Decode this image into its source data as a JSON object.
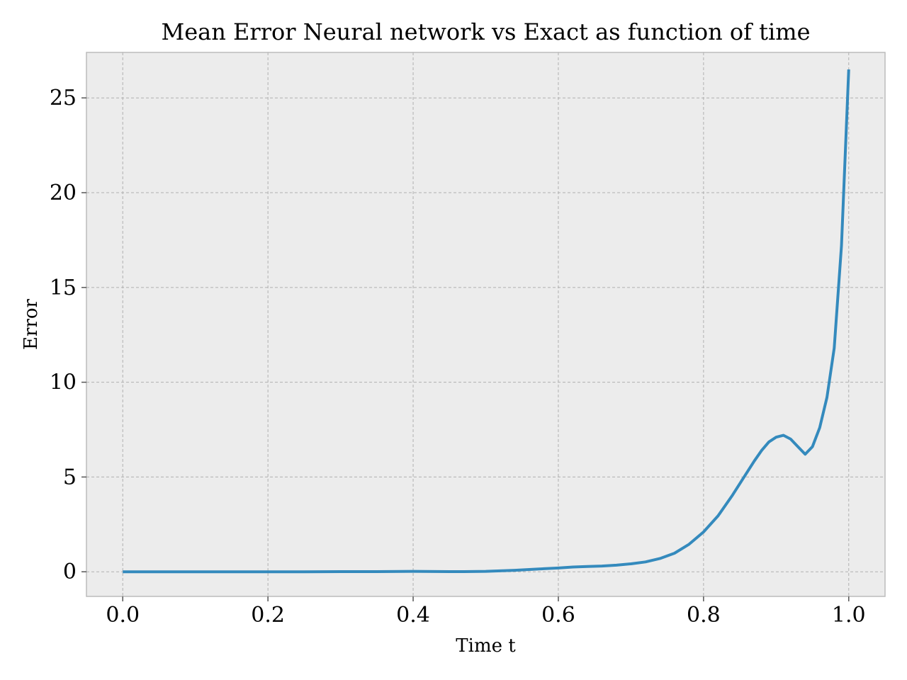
{
  "chart_data": {
    "type": "line",
    "title": "Mean Error Neural network vs Exact as function of time",
    "xlabel": "Time t",
    "ylabel": "Error",
    "xlim": [
      -0.05,
      1.05
    ],
    "ylim": [
      -1.3,
      27.4
    ],
    "xticks": [
      0.0,
      0.2,
      0.4,
      0.6,
      0.8,
      1.0
    ],
    "xtick_labels": [
      "0.0",
      "0.2",
      "0.4",
      "0.6",
      "0.8",
      "1.0"
    ],
    "yticks": [
      0,
      5,
      10,
      15,
      20,
      25
    ],
    "ytick_labels": [
      "0",
      "5",
      "10",
      "15",
      "20",
      "25"
    ],
    "grid": true,
    "colors": {
      "series": "#348abd",
      "plot_background": "#ececec",
      "grid": "#b0b0b0"
    },
    "series": [
      {
        "x": [
          0.0,
          0.05,
          0.1,
          0.15,
          0.2,
          0.25,
          0.3,
          0.35,
          0.4,
          0.45,
          0.47,
          0.5,
          0.52,
          0.54,
          0.56,
          0.58,
          0.6,
          0.62,
          0.64,
          0.66,
          0.68,
          0.7,
          0.72,
          0.74,
          0.76,
          0.78,
          0.8,
          0.82,
          0.84,
          0.86,
          0.87,
          0.88,
          0.89,
          0.9,
          0.91,
          0.92,
          0.93,
          0.94,
          0.95,
          0.96,
          0.97,
          0.98,
          0.99,
          1.0
        ],
        "y": [
          0.0,
          0.0,
          0.0,
          0.0,
          0.0,
          0.0,
          0.01,
          0.01,
          0.02,
          0.01,
          0.01,
          0.02,
          0.05,
          0.08,
          0.12,
          0.16,
          0.2,
          0.25,
          0.28,
          0.3,
          0.35,
          0.42,
          0.52,
          0.7,
          0.98,
          1.45,
          2.1,
          2.95,
          4.05,
          5.25,
          5.85,
          6.4,
          6.85,
          7.1,
          7.2,
          7.0,
          6.6,
          6.2,
          6.6,
          7.6,
          9.2,
          11.8,
          17.2,
          26.5
        ]
      }
    ]
  }
}
